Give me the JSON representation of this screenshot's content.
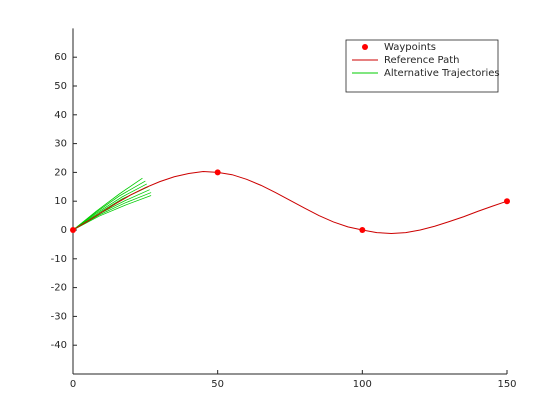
{
  "chart_data": {
    "type": "line",
    "xlim": [
      0,
      150
    ],
    "ylim": [
      -50,
      70
    ],
    "xticks": [
      0,
      50,
      100,
      150
    ],
    "yticks": [
      -40,
      -30,
      -20,
      -10,
      0,
      10,
      20,
      30,
      40,
      50,
      60
    ],
    "legend": "upper right",
    "series": [
      {
        "name": "Waypoints",
        "type": "scatter",
        "color": "#ff0000",
        "x": [
          0,
          50,
          100,
          150
        ],
        "values": [
          0,
          20,
          0,
          10
        ]
      },
      {
        "name": "Reference Path",
        "type": "line",
        "color": "#cc0000",
        "x": [
          0,
          5,
          10,
          15,
          20,
          25,
          30,
          35,
          40,
          45,
          50,
          55,
          60,
          65,
          70,
          75,
          80,
          85,
          90,
          95,
          100,
          105,
          110,
          115,
          120,
          125,
          130,
          135,
          140,
          145,
          150
        ],
        "values": [
          0,
          3,
          6.2,
          9.3,
          12.2,
          14.7,
          16.8,
          18.5,
          19.6,
          20.3,
          20,
          19.2,
          17.6,
          15.5,
          13,
          10.3,
          7.6,
          5,
          2.8,
          1.1,
          0,
          -0.9,
          -1.2,
          -0.9,
          0,
          1.3,
          2.9,
          4.6,
          6.5,
          8.3,
          10
        ]
      },
      {
        "name": "Alternative Trajectories",
        "type": "lines",
        "color": "#00cc00",
        "lines": [
          {
            "x": [
              0,
              8,
              16,
              24
            ],
            "values": [
              0,
              6.5,
              12.5,
              18
            ]
          },
          {
            "x": [
              0,
              8,
              16,
              25
            ],
            "values": [
              0,
              6.2,
              11.8,
              17
            ]
          },
          {
            "x": [
              0,
              8,
              17,
              25.5
            ],
            "values": [
              0,
              5.8,
              11.5,
              16
            ]
          },
          {
            "x": [
              0,
              9,
              17,
              26
            ],
            "values": [
              0,
              6,
              10.8,
              15
            ]
          },
          {
            "x": [
              0,
              9,
              18,
              26.5
            ],
            "values": [
              0,
              5.6,
              10.2,
              14
            ]
          },
          {
            "x": [
              0,
              9,
              18,
              27
            ],
            "values": [
              0,
              5.2,
              9.4,
              13
            ]
          },
          {
            "x": [
              0,
              9,
              18,
              27
            ],
            "values": [
              0,
              4.8,
              8.6,
              12
            ]
          }
        ]
      }
    ]
  }
}
